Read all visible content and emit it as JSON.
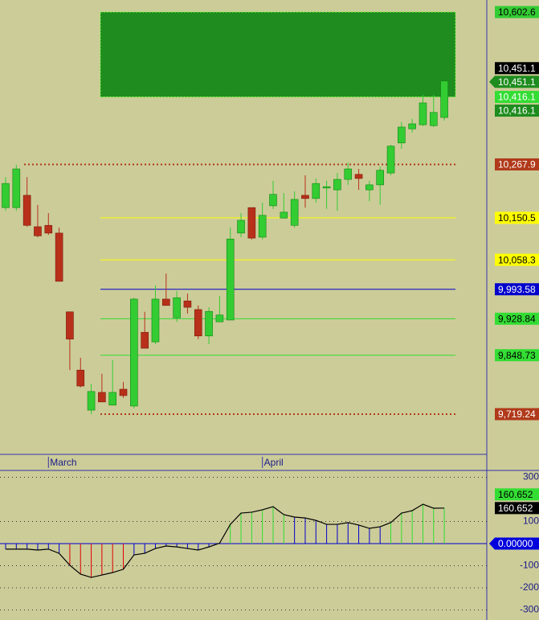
{
  "chart_data": [
    {
      "type": "candlestick",
      "categories": [
        null,
        null,
        null,
        null,
        "March",
        null,
        null,
        null,
        null,
        null,
        null,
        null,
        null,
        null,
        null,
        null,
        null,
        null,
        null,
        null,
        null,
        null,
        null,
        null,
        "April",
        null,
        null,
        null,
        null,
        null,
        null,
        null,
        null,
        null,
        null,
        null,
        null,
        null,
        null,
        null,
        null,
        null
      ],
      "open": [
        10173,
        10173,
        10200,
        10131,
        10134,
        10117,
        9944,
        9816,
        9728,
        9767,
        9739,
        9774,
        9737,
        9899,
        9878,
        9972,
        9931,
        9968,
        9949,
        9891,
        9922,
        9926,
        10117,
        10173,
        10108,
        10177,
        10150,
        10134,
        10200,
        10193,
        10216,
        10212,
        10235,
        10246,
        10212,
        10223,
        10249,
        10315,
        10346,
        10355,
        10353,
        10371
      ],
      "high": [
        10240,
        10267,
        10240,
        10179,
        10161,
        10129,
        9944,
        9843,
        9786,
        9808,
        9838,
        9790,
        9975,
        9944,
        10002,
        10028,
        9990,
        9984,
        9958,
        9954,
        9979,
        10129,
        10161,
        10173,
        10184,
        10232,
        10205,
        10209,
        10244,
        10237,
        10232,
        10249,
        10272,
        10258,
        10232,
        10263,
        10311,
        10361,
        10368,
        10421,
        10421,
        10451
      ],
      "low": [
        10166,
        10166,
        10131,
        10108,
        10113,
        10011,
        9816,
        9778,
        9719,
        9746,
        9739,
        9755,
        9732,
        9864,
        9873,
        9958,
        9922,
        9940,
        9884,
        9873,
        9922,
        9926,
        10108,
        10103,
        10103,
        10170,
        10149,
        10129,
        10173,
        10184,
        10170,
        10166,
        10223,
        10212,
        10187,
        10179,
        10244,
        10302,
        10338,
        10352,
        10350,
        10364
      ],
      "close": [
        10226,
        10258,
        10134,
        10111,
        10117,
        10011,
        9884,
        9781,
        9769,
        9746,
        9767,
        9760,
        9972,
        9864,
        9972,
        9958,
        9975,
        9954,
        9891,
        9945,
        9937,
        10104,
        10145,
        10106,
        10156,
        10202,
        10163,
        10191,
        10193,
        10226,
        10219,
        10235,
        10258,
        10237,
        10223,
        10255,
        10308,
        10350,
        10357,
        10403,
        10382,
        10451
      ],
      "up_color": "#33cc33",
      "down_color": "#b8301a",
      "ylim": [
        9630.9,
        10629.1
      ],
      "zone": {
        "range": [
          10416.1,
          10602.6
        ],
        "color": "#1e8c1e"
      },
      "levels": [
        {
          "value": 10602.6,
          "label": "10,602.6",
          "color": "#33cc33",
          "text_color": "#000000"
        },
        {
          "value": 10451.1,
          "label": "10,451.1",
          "color": "#000000",
          "text_color": "#ffffff"
        },
        {
          "value": 10451.1,
          "label": "10,451.1",
          "color": "#1e8c1e",
          "text_color": "#ffffff"
        },
        {
          "value": 10416.1,
          "label": "10,416.1",
          "color": "#33dd33",
          "text_color": "#ffffff"
        },
        {
          "value": 10416.1,
          "label": "10,416.1",
          "color": "#1e8c1e",
          "text_color": "#ffffff"
        },
        {
          "value": 10267.9,
          "label": "10,267.9",
          "color": "#b03a1a",
          "text_color": "#ffffff",
          "line": "dotted"
        },
        {
          "value": 10150.5,
          "label": "10,150.5",
          "color": "#ffff00",
          "text_color": "#000000",
          "line": "solid"
        },
        {
          "value": 10058.3,
          "label": "10,058.3",
          "color": "#ffff00",
          "text_color": "#000000",
          "line": "solid"
        },
        {
          "value": 9993.58,
          "label": "9,993.58",
          "color": "#0000cc",
          "text_color": "#ffffff",
          "line": "solid"
        },
        {
          "value": 9928.84,
          "label": "9,928.84",
          "color": "#33dd33",
          "text_color": "#000000",
          "line": "solid"
        },
        {
          "value": 9848.73,
          "label": "9,848.73",
          "color": "#33dd33",
          "text_color": "#000000",
          "line": "solid"
        },
        {
          "value": 9719.24,
          "label": "9,719.24",
          "color": "#b03a1a",
          "text_color": "#ffffff",
          "line": "dotted"
        }
      ]
    },
    {
      "type": "oscillator",
      "values": [
        -25,
        -25,
        -25,
        -29,
        -25,
        -44,
        -98,
        -138,
        -153,
        -142,
        -131,
        -116,
        -51,
        -44,
        -22,
        -11,
        -15,
        -22,
        -29,
        -15,
        2,
        87,
        138,
        142,
        153,
        167,
        131,
        120,
        116,
        105,
        87,
        87,
        95,
        84,
        69,
        76,
        95,
        138,
        149,
        178,
        160,
        160.652
      ],
      "colors": [
        "#0000cc",
        "#0000cc",
        "#0000cc",
        "#0000cc",
        "#0000cc",
        "#0000cc",
        "#dd0000",
        "#dd0000",
        "#dd0000",
        "#dd0000",
        "#dd0000",
        "#dd0000",
        "#0000cc",
        "#0000cc",
        "#0000cc",
        "#0000cc",
        "#0000cc",
        "#0000cc",
        "#0000cc",
        "#0000cc",
        "#0000cc",
        "#33dd33",
        "#33dd33",
        "#33dd33",
        "#33dd33",
        "#33dd33",
        "#33dd33",
        "#0000cc",
        "#0000cc",
        "#0000cc",
        "#0000cc",
        "#0000cc",
        "#0000cc",
        "#0000cc",
        "#0000cc",
        "#0000cc",
        "#33dd33",
        "#33dd33",
        "#33dd33",
        "#33dd33",
        "#33dd33",
        "#33dd33"
      ],
      "line_color": "#000000",
      "ylim": [
        -345.5,
        330.9
      ],
      "yticks": [
        300,
        100,
        -100,
        -200,
        -300
      ],
      "grid": true,
      "markers": [
        {
          "value": 160.652,
          "label": "160.652",
          "color": "#33dd33",
          "text_color": "#000000"
        },
        {
          "value": 160.652,
          "label": "160.652",
          "color": "#000000",
          "text_color": "#ffffff"
        },
        {
          "value": 0,
          "label": "0.00000",
          "color": "#0000dd",
          "text_color": "#ffffff"
        }
      ]
    }
  ]
}
